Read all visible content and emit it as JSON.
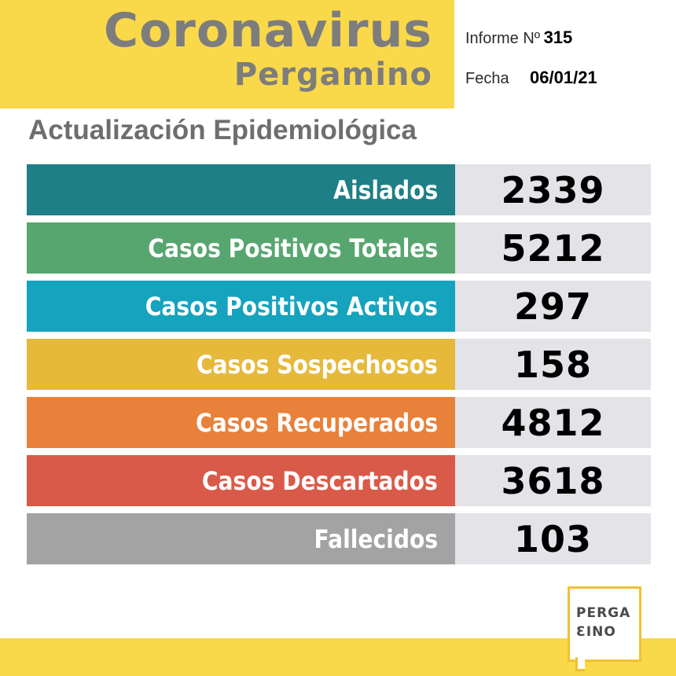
{
  "header": {
    "title": "Coronavirus",
    "city": "Pergamino",
    "informe_label": "Informe Nº",
    "informe_value": "315",
    "fecha_label": "Fecha",
    "fecha_value": "06/01/21"
  },
  "subtitle": "Actualización Epidemiológica",
  "stats": [
    {
      "label": "Aislados",
      "value": "2339",
      "color": "#1f7f86"
    },
    {
      "label": "Casos Positivos Totales",
      "value": "5212",
      "color": "#57a66f"
    },
    {
      "label": "Casos Positivos Activos",
      "value": "297",
      "color": "#15a3bd"
    },
    {
      "label": "Casos Sospechosos",
      "value": "158",
      "color": "#e6b93b"
    },
    {
      "label": "Casos Recuperados",
      "value": "4812",
      "color": "#e8813a"
    },
    {
      "label": "Casos Descartados",
      "value": "3618",
      "color": "#d95a49"
    },
    {
      "label": "Fallecidos",
      "value": "103",
      "color": "#a3a3a3"
    }
  ],
  "logo": {
    "line1": "PERGA",
    "line2": "ƐINO"
  },
  "colors": {
    "brand_yellow": "#f9d84a",
    "title_gray": "#7d7d7d",
    "value_bg": "#e4e3e8"
  }
}
